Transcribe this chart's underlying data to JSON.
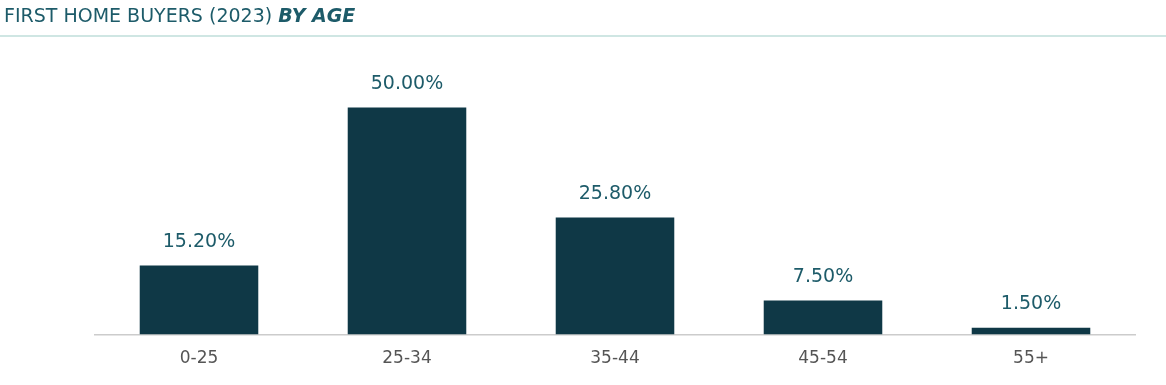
{
  "chart_data": {
    "type": "bar",
    "title": "FIRST HOME BUYERS (2023)",
    "subtitle": "BY AGE",
    "categories": [
      "0-25",
      "25-34",
      "35-44",
      "45-54",
      "55+"
    ],
    "values": [
      15.2,
      50,
      25.8,
      7.5,
      1.5
    ],
    "value_labels": [
      "15.20%",
      "50.00%",
      "25.80%",
      "7.50%",
      "1.50%"
    ],
    "color": "#0f3846",
    "grid": false,
    "legend": false
  }
}
